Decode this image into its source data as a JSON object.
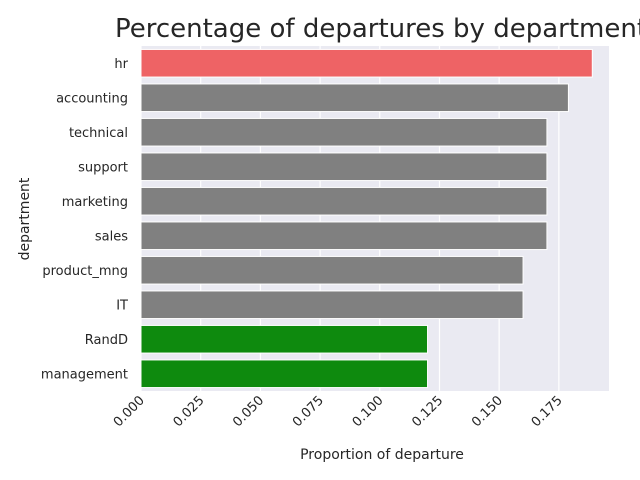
{
  "chart_data": {
    "type": "bar",
    "orientation": "horizontal",
    "title": "Percentage of departures by department",
    "xlabel": "Proportion of departure",
    "ylabel": "department",
    "categories": [
      "hr",
      "accounting",
      "technical",
      "support",
      "marketing",
      "sales",
      "product_mng",
      "IT",
      "RandD",
      "management"
    ],
    "values": [
      0.189,
      0.179,
      0.17,
      0.17,
      0.17,
      0.17,
      0.16,
      0.16,
      0.12,
      0.12
    ],
    "bar_colors": [
      "#ee6365",
      "#808080",
      "#808080",
      "#808080",
      "#808080",
      "#808080",
      "#808080",
      "#808080",
      "#0e8a0e",
      "#0e8a0e"
    ],
    "xlim": [
      0,
      0.196
    ],
    "xticks": [
      "0.000",
      "0.025",
      "0.050",
      "0.075",
      "0.100",
      "0.125",
      "0.150",
      "0.175"
    ],
    "xtick_values": [
      0,
      0.025,
      0.05,
      0.075,
      0.1,
      0.125,
      0.15,
      0.175
    ],
    "grid": true,
    "background": "#eaeaf2",
    "grid_color": "#ffffff"
  }
}
